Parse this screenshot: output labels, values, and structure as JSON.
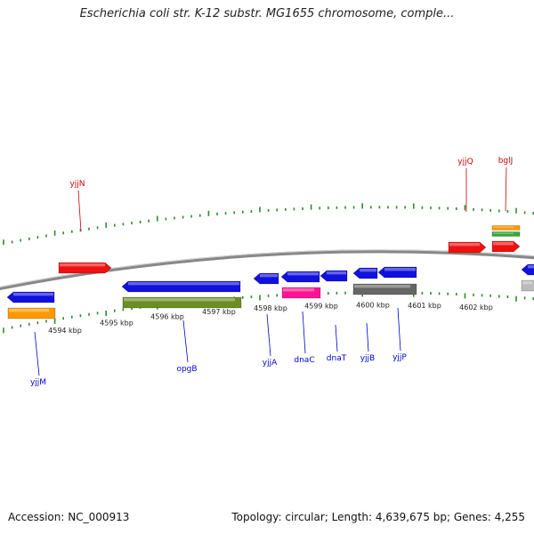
{
  "title": "Escherichia coli str. K-12 substr. MG1655 chromosome, comple...",
  "accession": "Accession: NC_000913",
  "summary": "Topology: circular; Length: 4,639,675 bp; Genes: 4,255",
  "colors": {
    "forward_label": "#cc0000",
    "reverse_label": "#0000cc",
    "forward_gene": "#ee1111",
    "reverse_gene": "#1111dd",
    "tick": "#2e8b2e",
    "backbone": "#888888"
  },
  "scale_ticks": [
    "4594 kbp",
    "4595 kbp",
    "4596 kbp",
    "4597 kbp",
    "4598 kbp",
    "4599 kbp",
    "4600 kbp",
    "4601 kbp",
    "4602 kbp"
  ],
  "forward_genes": [
    {
      "name": "yjjN",
      "color": "#ee1111"
    },
    {
      "name": "yjjQ",
      "color": "#ee1111"
    },
    {
      "name": "bglJ",
      "color": "#ee1111"
    },
    {
      "name": "",
      "color": "#ff9900"
    },
    {
      "name": "",
      "color": "#33aa33"
    }
  ],
  "reverse_genes": [
    {
      "name": "yjjM",
      "color": "#1111dd"
    },
    {
      "name": "",
      "color": "#ff9900"
    },
    {
      "name": "opgB",
      "color": "#1111dd"
    },
    {
      "name": "",
      "color": "#6b8e23"
    },
    {
      "name": "yjjA",
      "color": "#1111dd"
    },
    {
      "name": "dnaC",
      "color": "#1111dd"
    },
    {
      "name": "",
      "color": "#ff1493"
    },
    {
      "name": "dnaT",
      "color": "#1111dd"
    },
    {
      "name": "yjjB",
      "color": "#1111dd"
    },
    {
      "name": "yjjP",
      "color": "#1111dd"
    },
    {
      "name": "",
      "color": "#666666"
    },
    {
      "name": "",
      "color": "#1111dd"
    },
    {
      "name": "",
      "color": "#bbbbbb"
    }
  ]
}
